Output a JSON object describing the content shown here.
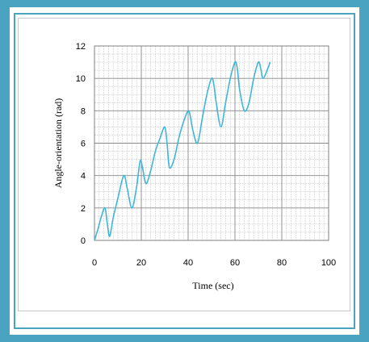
{
  "chart_data": {
    "type": "line",
    "title": "",
    "xlabel": "Time (sec)",
    "ylabel": "Angle-orientation (rad)",
    "xlim": [
      0,
      100
    ],
    "ylim": [
      0,
      12
    ],
    "x_ticks": [
      "0",
      "20",
      "40",
      "60",
      "80",
      "100"
    ],
    "y_ticks": [
      "0",
      "2",
      "4",
      "6",
      "8",
      "10",
      "12"
    ],
    "grid": true,
    "legend": "none",
    "series": [
      {
        "color": "#3fb6d8",
        "x": [
          0,
          1.5,
          3,
          4.5,
          5.5,
          6.5,
          8,
          10,
          12.5,
          14,
          16,
          18,
          19.5,
          20.5,
          22,
          24,
          26,
          28,
          30,
          31,
          32,
          34,
          36,
          38,
          40,
          41,
          42,
          44,
          46,
          48,
          50,
          51,
          52,
          54,
          56,
          58,
          60,
          61,
          62,
          64,
          66,
          68,
          70,
          71,
          72,
          74,
          75
        ],
        "y": [
          0,
          0.7,
          1.5,
          2.0,
          1.0,
          0.25,
          1.4,
          2.6,
          4.0,
          3.2,
          2.0,
          3.3,
          4.9,
          4.5,
          3.5,
          4.3,
          5.5,
          6.3,
          7.0,
          6.0,
          4.5,
          5.0,
          6.3,
          7.3,
          8.0,
          7.6,
          6.8,
          6.0,
          7.5,
          9.0,
          10.0,
          9.6,
          8.5,
          7.0,
          8.5,
          10.0,
          11.0,
          10.6,
          9.3,
          8.0,
          8.5,
          10.0,
          11.0,
          10.6,
          10.0,
          10.6,
          11.0
        ]
      }
    ]
  }
}
